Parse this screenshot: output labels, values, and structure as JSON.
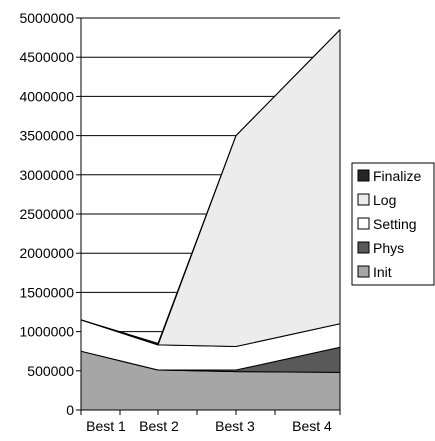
{
  "chart_data": {
    "type": "area",
    "stacked": true,
    "categories": [
      "Best 1",
      "Best 2",
      "Best 3",
      "Best 4"
    ],
    "ylim": [
      0,
      5000000
    ],
    "yticks": [
      "0",
      "500000",
      "1000000",
      "1500000",
      "2000000",
      "2500000",
      "3000000",
      "3500000",
      "4000000",
      "4500000",
      "5000000"
    ],
    "grid": true,
    "legend_position": "right",
    "series": [
      {
        "name": "Init",
        "values": [
          750000,
          510000,
          490000,
          480000
        ],
        "color": "#a6a6a6"
      },
      {
        "name": "Phys",
        "values": [
          0,
          0,
          20000,
          320000
        ],
        "color": "#595959"
      },
      {
        "name": "Setting",
        "values": [
          400000,
          320000,
          300000,
          300000
        ],
        "color": "#ffffff"
      },
      {
        "name": "Log",
        "values": [
          0,
          0,
          2690000,
          3750000
        ],
        "color": "#ececec"
      },
      {
        "name": "Finalize",
        "values": [
          0,
          20000,
          0,
          0
        ],
        "color": "#262626"
      }
    ],
    "legend_order": [
      "Finalize",
      "Log",
      "Setting",
      "Phys",
      "Init"
    ]
  }
}
